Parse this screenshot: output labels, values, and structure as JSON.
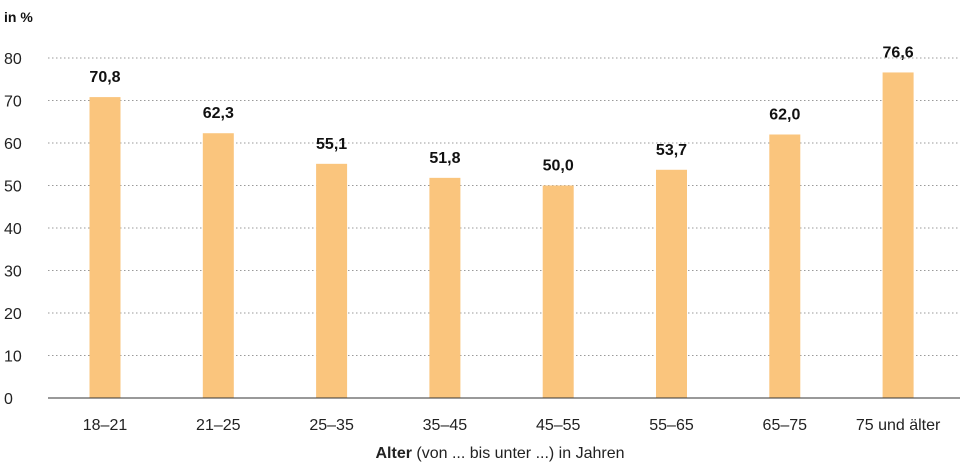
{
  "chart_data": {
    "type": "bar",
    "unit_label": "in %",
    "categories": [
      "18–21",
      "21–25",
      "25–35",
      "35–45",
      "45–55",
      "55–65",
      "65–75",
      "75 und älter"
    ],
    "values": [
      70.8,
      62.3,
      55.1,
      51.8,
      50.0,
      53.7,
      62.0,
      76.6
    ],
    "value_labels": [
      "70,8",
      "62,3",
      "55,1",
      "51,8",
      "50,0",
      "53,7",
      "62,0",
      "76,6"
    ],
    "xlabel_bold": "Alter",
    "xlabel_rest": " (von ... bis unter ...) in Jahren",
    "ylim": [
      0,
      80
    ],
    "yticks": [
      0,
      10,
      20,
      30,
      40,
      50,
      60,
      70,
      80
    ],
    "grid": true,
    "bar_color": "#FAC57D"
  }
}
